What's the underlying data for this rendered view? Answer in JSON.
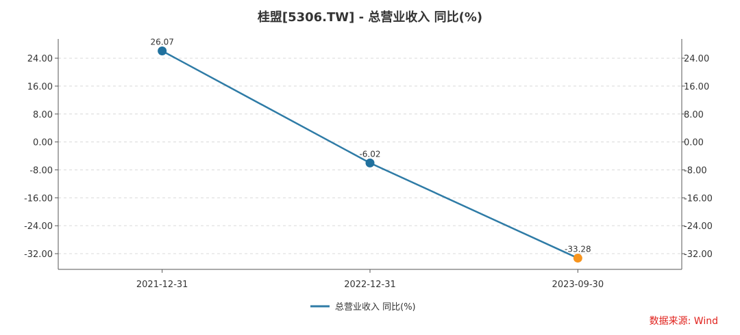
{
  "chart_data": {
    "type": "line",
    "title": "桂盟[5306.TW] - 总营业收入 同比(%)",
    "categories": [
      "2021-12-31",
      "2022-12-31",
      "2023-09-30"
    ],
    "series": [
      {
        "name": "总营业收入 同比(%)",
        "values": [
          26.07,
          -6.02,
          -33.28
        ],
        "value_labels": [
          "26.07",
          "-6.02",
          "-33.28"
        ],
        "color": "#2e7ba6",
        "point_colors": [
          "#21719e",
          "#21719e",
          "#f7941d"
        ]
      }
    ],
    "y_ticks": [
      24,
      16,
      8,
      0,
      -8,
      -16,
      -24,
      -32
    ],
    "y_tick_labels": [
      "24.00",
      "16.00",
      "8.00",
      "0.00",
      "-8.00",
      "-16.00",
      "-24.00",
      "-32.00"
    ],
    "ylim": [
      -36.5,
      29.5
    ],
    "y_axis_both_sides": true,
    "grid": true,
    "legend_position": "bottom-center",
    "source": "数据来源: Wind"
  }
}
